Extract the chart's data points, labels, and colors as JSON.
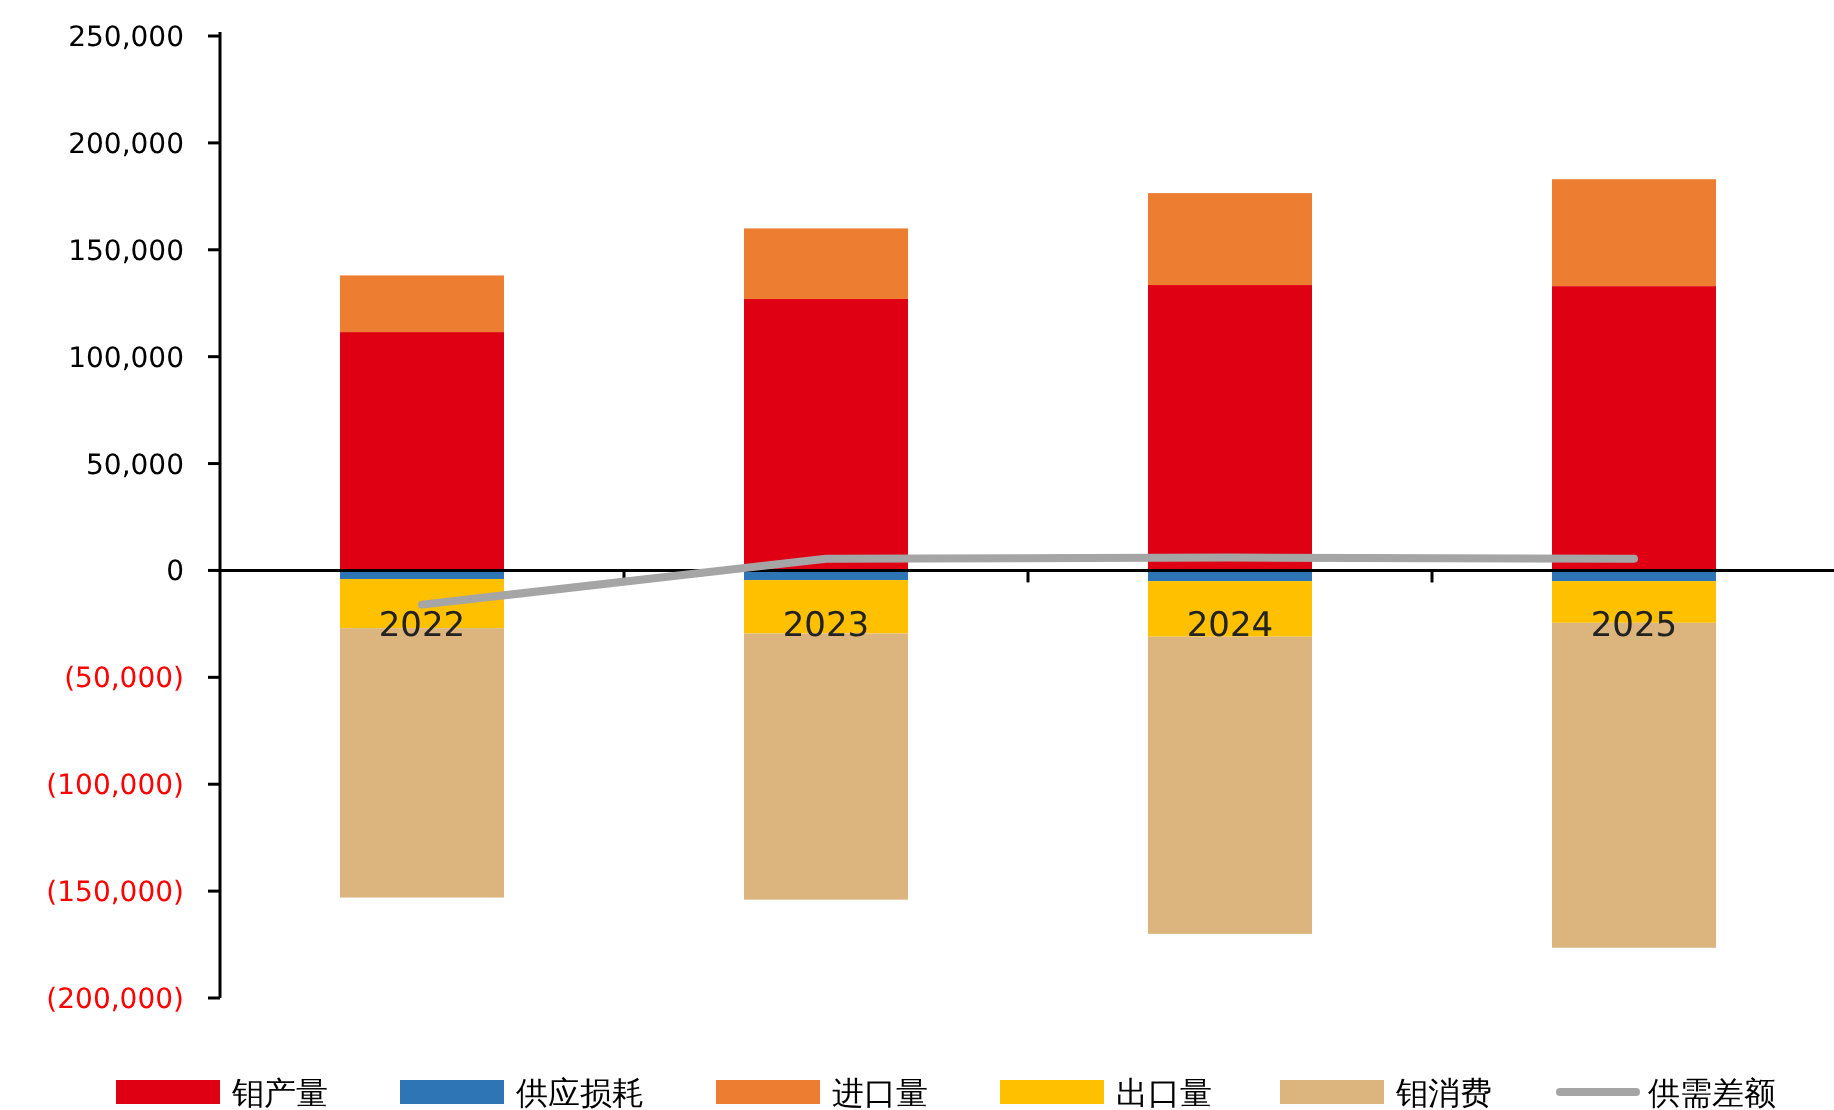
{
  "chart_data": {
    "type": "bar",
    "stacked": true,
    "categories": [
      "2022",
      "2023",
      "2024",
      "2025"
    ],
    "series": [
      {
        "name": "钼产量",
        "color": "#e00014",
        "values": [
          111500,
          127000,
          133500,
          133000
        ]
      },
      {
        "name": "供应损耗",
        "color": "#2e75b6",
        "values": [
          -4000,
          -4500,
          -5000,
          -5000
        ]
      },
      {
        "name": "进口量",
        "color": "#ed7d31",
        "values": [
          26500,
          33000,
          43000,
          50000
        ]
      },
      {
        "name": "出口量",
        "color": "#ffc000",
        "values": [
          -23000,
          -25000,
          -26000,
          -19500
        ]
      },
      {
        "name": "钼消费",
        "color": "#dbb47e",
        "values": [
          -126000,
          -124500,
          -139000,
          -152000
        ]
      },
      {
        "name": "供需差额",
        "type": "line",
        "color": "#a5a5a5",
        "values": [
          -16000,
          5500,
          6000,
          5500
        ]
      }
    ],
    "ylim": [
      -200000,
      250000
    ],
    "yticks": [
      {
        "value": -200000,
        "label": "(200,000)"
      },
      {
        "value": -150000,
        "label": "(150,000)"
      },
      {
        "value": -100000,
        "label": "(100,000)"
      },
      {
        "value": -50000,
        "label": "(50,000)"
      },
      {
        "value": 0,
        "label": "0"
      },
      {
        "value": 50000,
        "label": "50,000"
      },
      {
        "value": 100000,
        "label": "100,000"
      },
      {
        "value": 150000,
        "label": "150,000"
      },
      {
        "value": 200000,
        "label": "200,000"
      },
      {
        "value": 250000,
        "label": "250,000"
      }
    ],
    "legend": "bottom"
  }
}
